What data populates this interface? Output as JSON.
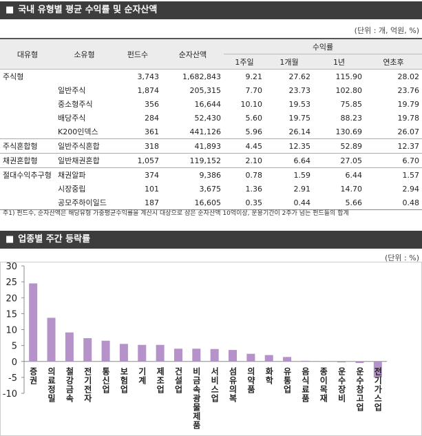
{
  "section1": {
    "title": "국내 유형별 평균 수익률 및 순자산액",
    "unit": "(단위 : 개, 억원, %)",
    "note": "주1) 펀드수, 순자산액은 해당유형 가중평균수익률을 계산시 대상으로 삼은 순자산액 10억이상, 운용기간이 2주가 넘는 펀드들의 합계"
  },
  "table": {
    "header": [
      "대유형",
      "소유형",
      "펀드수",
      "순자산액",
      "수익률"
    ],
    "subheader": [
      "1주일",
      "1개월",
      "1년",
      "연초후"
    ],
    "rows": [
      [
        "주식형",
        null,
        "3,743",
        "1,682,843",
        "9.21",
        "27.62",
        "115.90",
        "28.02"
      ],
      [
        null,
        "일반주식",
        "1,874",
        "205,315",
        "7.70",
        "23.73",
        "102.80",
        "23.76"
      ],
      [
        null,
        "중소형주식",
        "356",
        "16,644",
        "10.10",
        "19.53",
        "75.85",
        "19.79"
      ],
      [
        null,
        "배당주식",
        "284",
        "52,430",
        "5.60",
        "19.75",
        "88.23",
        "19.78"
      ],
      [
        null,
        "K200인덱스",
        "361",
        "441,126",
        "5.96",
        "26.14",
        "130.69",
        "26.07"
      ],
      [
        "주식혼합형",
        "일반주식혼합",
        "318",
        "41,893",
        "4.45",
        "12.35",
        "52.89",
        "12.37"
      ],
      [
        "채권혼합형",
        "일반채권혼합",
        "1,057",
        "119,152",
        "2.10",
        "6.64",
        "27.05",
        "6.70"
      ],
      [
        "절대수익추구형",
        "채권알파",
        "374",
        "9,386",
        "0.78",
        "1.59",
        "6.44",
        "1.57"
      ],
      [
        null,
        "시장중립",
        "101",
        "3,675",
        "1.36",
        "2.91",
        "14.70",
        "2.94"
      ],
      [
        null,
        "공모주하이일드",
        "187",
        "16,605",
        "0.35",
        "0.44",
        "5.66",
        "0.48"
      ]
    ]
  },
  "section2": {
    "title": "업종별 주간 등락률",
    "unit": "(단위 : %)"
  },
  "chart_data": {
    "type": "bar",
    "categories": [
      "증권",
      "의료정밀",
      "철강금속",
      "전기전자",
      "통신업",
      "보험업",
      "기계",
      "제조업",
      "건설업",
      "비금속광물제품",
      "서비스업",
      "섬유의복",
      "의약품",
      "화학",
      "유통업",
      "음식료품",
      "종이목재",
      "운수장비",
      "운수창고업",
      "전기가스업"
    ],
    "values": [
      24.5,
      13.7,
      9.1,
      7.3,
      6.5,
      5.5,
      5.2,
      5.2,
      4.0,
      4.0,
      3.9,
      3.6,
      2.4,
      2.0,
      1.4,
      0.2,
      -0.1,
      -0.3,
      -0.5,
      -5.0
    ],
    "color": "#b592c9",
    "ylim": [
      -10,
      30
    ],
    "yticks": [
      -10,
      -5,
      0,
      5,
      10,
      15,
      20,
      25,
      30
    ]
  }
}
